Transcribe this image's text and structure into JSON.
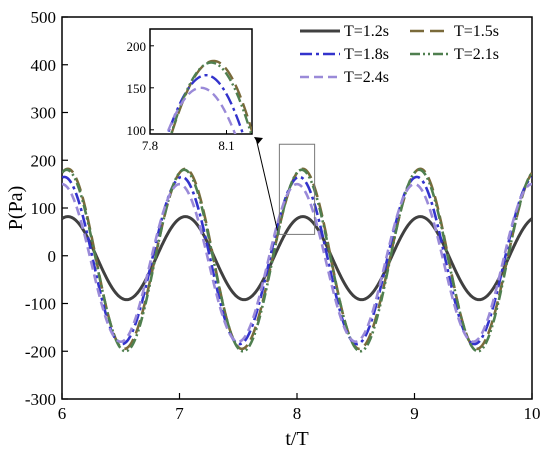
{
  "chart_data": {
    "type": "line",
    "title": "",
    "xlabel": "t/T",
    "ylabel": "P(Pa)",
    "xlim": [
      6,
      10
    ],
    "ylim": [
      -300,
      500
    ],
    "xticks": [
      "6",
      "7",
      "8",
      "9",
      "10"
    ],
    "yticks": [
      "-300",
      "-200",
      "-100",
      "0",
      "100",
      "200",
      "300",
      "400",
      "500"
    ],
    "grid": false,
    "legend_position": "top-right",
    "series": [
      {
        "name": "T=1.2s",
        "color": "#404040",
        "dash": "solid",
        "peak": 82,
        "trough": -92,
        "peak_phase": 0.05,
        "trough_phase": 0.55
      },
      {
        "name": "T=1.5s",
        "color": "#7a6a3a",
        "dash": "long-dash",
        "peak": 182,
        "trough": -195,
        "peak_phase": 0.05,
        "trough_phase": 0.53
      },
      {
        "name": "T=1.8s",
        "color": "#3333cc",
        "dash": "dash-dot",
        "peak": 165,
        "trough": -185,
        "peak_phase": 0.02,
        "trough_phase": 0.51
      },
      {
        "name": "T=2.1s",
        "color": "#4f7f4f",
        "dash": "dash-dot-dot",
        "peak": 180,
        "trough": -200,
        "peak_phase": 0.04,
        "trough_phase": 0.54
      },
      {
        "name": "T=2.4s",
        "color": "#9a8ad8",
        "dash": "dash",
        "peak": 150,
        "trough": -180,
        "peak_phase": 0.0,
        "trough_phase": 0.5
      }
    ],
    "inset": {
      "xlim": [
        7.8,
        8.2
      ],
      "ylim": [
        95,
        220
      ],
      "xticks": [
        "7.8",
        "8.1"
      ],
      "yticks": [
        "100",
        "150",
        "200"
      ],
      "zoom_region": {
        "xlim": [
          7.85,
          8.15
        ],
        "ylim": [
          95,
          200
        ]
      }
    }
  }
}
